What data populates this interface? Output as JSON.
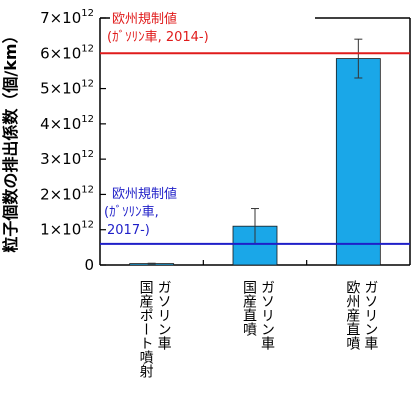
{
  "chart_data": {
    "type": "bar",
    "title": "",
    "ylabel": "粒子個数の排出係数（個/km）",
    "xlabel": "",
    "ylim": [
      0,
      7000000000000.0
    ],
    "yticks": [
      {
        "value": 0,
        "mantissa": "0",
        "exp": ""
      },
      {
        "value": 1000000000000.0,
        "mantissa": "1×10",
        "exp": "12"
      },
      {
        "value": 2000000000000.0,
        "mantissa": "2×10",
        "exp": "12"
      },
      {
        "value": 3000000000000.0,
        "mantissa": "3×10",
        "exp": "12"
      },
      {
        "value": 4000000000000.0,
        "mantissa": "4×10",
        "exp": "12"
      },
      {
        "value": 5000000000000.0,
        "mantissa": "5×10",
        "exp": "12"
      },
      {
        "value": 6000000000000.0,
        "mantissa": "6×10",
        "exp": "12"
      },
      {
        "value": 7000000000000.0,
        "mantissa": "7×10",
        "exp": "12"
      }
    ],
    "categories": [
      {
        "line1": "国産ポート噴射",
        "line2": "ガソリン車"
      },
      {
        "line1": "国産直噴",
        "line2": "ガソリン車"
      },
      {
        "line1": "欧州産直噴",
        "line2": "ガソリン車"
      }
    ],
    "values": [
      40000000000.0,
      1100000000000.0,
      5850000000000.0
    ],
    "error_bars": [
      {
        "low": 30000000000.0,
        "high": 50000000000.0
      },
      {
        "low": 600000000000.0,
        "high": 1600000000000.0
      },
      {
        "low": 5300000000000.0,
        "high": 6400000000000.0
      }
    ],
    "bar_color": "#1aa7e8",
    "reference_lines": [
      {
        "value": 6000000000000.0,
        "color": "#e01b1b",
        "label_line1": "欧州規制値",
        "label_line2": "(ｶﾞｿﾘﾝ車, 2014-)"
      },
      {
        "value": 600000000000.0,
        "color": "#1f1fc8",
        "label_line1": "欧州規制値",
        "label_line2": "(ｶﾞｿﾘﾝ車,",
        "label_line3": "2017-)"
      }
    ],
    "grid": false,
    "legend": "none"
  }
}
